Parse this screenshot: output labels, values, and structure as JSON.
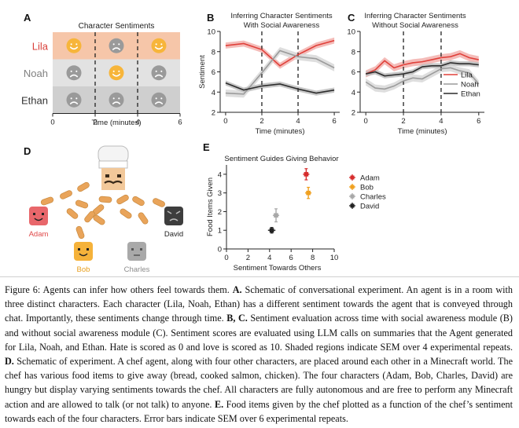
{
  "panels": {
    "A": {
      "letter": "A",
      "title": "Character Sentiments",
      "xlabel": "Time (minutes)",
      "xticks": [
        "0",
        "2",
        "4",
        "6"
      ],
      "rows": [
        {
          "name": "Lila",
          "color": "#d9403a",
          "band": "#f6c6a9",
          "faces": [
            "happy",
            "sad",
            "happy"
          ]
        },
        {
          "name": "Noah",
          "color": "#808080",
          "band": "#e2e2e2",
          "faces": [
            "sad",
            "happy",
            "sad"
          ]
        },
        {
          "name": "Ethan",
          "color": "#333333",
          "band": "#cfcfcf",
          "faces": [
            "sad",
            "sad",
            "sad"
          ]
        }
      ]
    },
    "B": {
      "letter": "B",
      "title1": "Inferring Character Sentiments",
      "title2": "With Social Awareness"
    },
    "C": {
      "letter": "C",
      "title1": "Inferring Character Sentiments",
      "title2": "Without Social Awareness"
    },
    "D": {
      "letter": "D",
      "characters": [
        {
          "name": "Adam",
          "color": "#e8676b",
          "label_color": "#e04a4a",
          "face": "happy"
        },
        {
          "name": "Bob",
          "color": "#f5b23a",
          "label_color": "#e8a020",
          "face": "happy"
        },
        {
          "name": "Charles",
          "color": "#a9a9a9",
          "label_color": "#8c8c8c",
          "face": "neutral"
        },
        {
          "name": "David",
          "color": "#3d3d3d",
          "label_color": "#222222",
          "face": "angry"
        }
      ]
    },
    "E": {
      "letter": "E"
    }
  },
  "chart_data": [
    {
      "type": "line",
      "panel": "B",
      "title": "Inferring Character Sentiments With Social Awareness",
      "xlabel": "Time (minutes)",
      "ylabel": "Sentiment",
      "xlim": [
        -0.3,
        6.3
      ],
      "ylim": [
        2,
        10
      ],
      "xticks": [
        0,
        2,
        4,
        6
      ],
      "yticks": [
        2,
        4,
        6,
        8,
        10
      ],
      "vlines": [
        2,
        4
      ],
      "x": [
        0,
        1,
        2,
        3,
        4,
        5,
        6
      ],
      "series": [
        {
          "name": "Lila",
          "color": "#e0403a",
          "band": "#f2b0ad",
          "values": [
            8.6,
            8.8,
            8.2,
            6.6,
            7.7,
            8.6,
            9.1
          ],
          "sem": 0.3
        },
        {
          "name": "Noah",
          "color": "#9b9b9b",
          "band": "#d8d8d8",
          "values": [
            3.9,
            3.8,
            5.9,
            8.1,
            7.5,
            7.3,
            6.4
          ],
          "sem": 0.35
        },
        {
          "name": "Ethan",
          "color": "#2c2c2c",
          "band": "#bdbdbd",
          "values": [
            4.9,
            4.2,
            4.6,
            4.8,
            4.3,
            3.9,
            4.2
          ],
          "sem": 0.25
        }
      ]
    },
    {
      "type": "line",
      "panel": "C",
      "title": "Inferring Character Sentiments Without Social Awareness",
      "xlabel": "Time (minutes)",
      "ylabel": "",
      "xlim": [
        -0.3,
        6.3
      ],
      "ylim": [
        2,
        10
      ],
      "xticks": [
        0,
        2,
        4,
        6
      ],
      "yticks": [
        2,
        4,
        6,
        8,
        10
      ],
      "vlines": [
        2,
        4
      ],
      "legend": "bottom-right",
      "x": [
        0,
        0.5,
        1,
        1.5,
        2,
        2.5,
        3,
        3.5,
        4,
        4.5,
        5,
        5.5,
        6
      ],
      "series": [
        {
          "name": "Lila",
          "color": "#e0403a",
          "band": "#f2b0ad",
          "values": [
            5.8,
            6.2,
            7.1,
            6.4,
            6.7,
            6.9,
            7.0,
            7.2,
            7.4,
            7.5,
            7.8,
            7.4,
            7.2
          ],
          "sem": 0.35
        },
        {
          "name": "Noah",
          "color": "#9b9b9b",
          "band": "#d8d8d8",
          "values": [
            5.0,
            4.4,
            4.3,
            4.6,
            5.1,
            5.4,
            5.3,
            5.8,
            6.3,
            6.4,
            6.1,
            5.9,
            4.8
          ],
          "sem": 0.35
        },
        {
          "name": "Ethan",
          "color": "#2c2c2c",
          "band": "#bdbdbd",
          "values": [
            5.8,
            6.0,
            5.6,
            5.7,
            5.8,
            6.0,
            6.5,
            6.6,
            6.6,
            6.9,
            6.8,
            6.8,
            6.7
          ],
          "sem": 0.25
        }
      ]
    },
    {
      "type": "scatter",
      "panel": "E",
      "title": "Sentiment Guides Giving Behavior",
      "xlabel": "Sentiment Towards Others",
      "ylabel": "Food Items Given",
      "xlim": [
        0,
        10
      ],
      "ylim": [
        0,
        4.5
      ],
      "xticks": [
        0,
        2,
        4,
        6,
        8,
        10
      ],
      "yticks": [
        0,
        1,
        2,
        3,
        4
      ],
      "legend": "right",
      "series": [
        {
          "name": "Adam",
          "color": "#d62c2c",
          "x": 7.4,
          "y": 4.0,
          "xerr": 0.15,
          "yerr": 0.3
        },
        {
          "name": "Bob",
          "color": "#f0a020",
          "x": 7.6,
          "y": 3.0,
          "xerr": 0.15,
          "yerr": 0.3
        },
        {
          "name": "Charles",
          "color": "#a8a8a8",
          "x": 4.6,
          "y": 1.8,
          "xerr": 0.15,
          "yerr": 0.35
        },
        {
          "name": "David",
          "color": "#222222",
          "x": 4.2,
          "y": 1.0,
          "xerr": 0.2,
          "yerr": 0.15
        }
      ]
    }
  ],
  "caption": {
    "label": "Figure 6:",
    "intro": " Agents can infer how others feel towards them. ",
    "a_label": "A.",
    "a_text": " Schematic of conversational experiment. An agent is in a room with three distinct characters. Each character (Lila, Noah, Ethan) has a different sentiment towards the agent that is conveyed through chat. Importantly, these sentiments change through time. ",
    "bc_label": "B, C.",
    "bc_text": " Sentiment evaluation across time with social awareness module (B) and without social awareness module (C). Sentiment scores are evaluated using LLM calls on summaries that the Agent generated for Lila, Noah, and Ethan. Hate is scored as 0 and love is scored as 10. Shaded regions indicate SEM over 4 experimental repeats. ",
    "d_label": "D.",
    "d_text": " Schematic of experiment. A chef agent, along with four other characters, are placed around each other in a Minecraft world. The chef has various food items to give away (bread, cooked salmon, chicken). The four characters (Adam, Bob, Charles, David) are hungry but display varying sentiments towards the chef. All characters are fully autonomous and are free to perform any Minecraft action and are allowed to talk (or not talk) to anyone. ",
    "e_label": "E.",
    "e_text": " Food items given by the chef plotted as a function of the chef’s sentiment towards each of the four characters. Error bars indicate SEM over 6 experimental repeats."
  }
}
